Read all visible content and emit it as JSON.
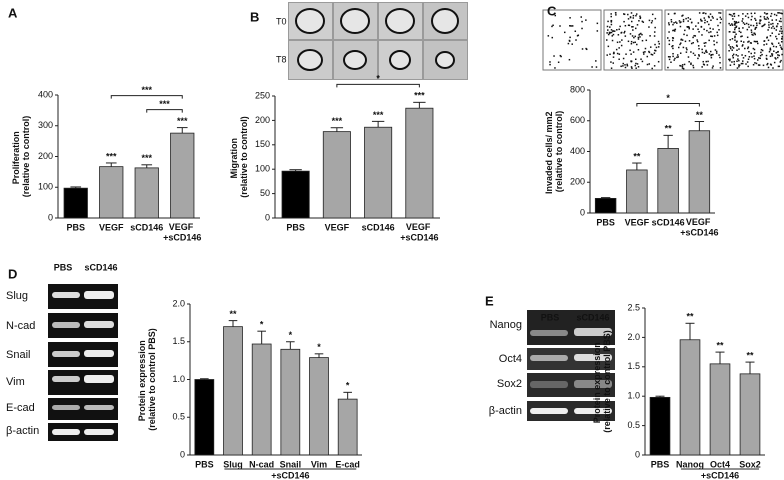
{
  "chart_data": [
    {
      "type": "bar",
      "label": "A",
      "ylabel": "Proliferation\n(relative to control)",
      "categories": [
        "PBS",
        "VEGF",
        "sCD146",
        "VEGF\n+sCD146"
      ],
      "values": [
        97,
        167,
        163,
        276
      ],
      "errors": [
        4,
        12,
        10,
        18
      ],
      "annotations": [
        null,
        "***",
        "***",
        "***"
      ],
      "bar_colors": [
        "#000000",
        "#a6a6a6",
        "#a6a6a6",
        "#a6a6a6"
      ],
      "brackets": [
        {
          "start": "VEGF",
          "end": "VEGF\n+sCD146",
          "label": "***"
        },
        {
          "start": "sCD146",
          "end": "VEGF\n+sCD146",
          "label": "***"
        }
      ],
      "ylim": [
        0,
        400
      ],
      "yticks": [
        0,
        100,
        200,
        300,
        400
      ]
    },
    {
      "type": "bar",
      "label": "B",
      "ylabel": "Migration\n(relative to control)",
      "image_labels": [
        "T0",
        "T8"
      ],
      "categories": [
        "PBS",
        "VEGF",
        "sCD146",
        "VEGF\n+sCD146"
      ],
      "values": [
        96,
        177,
        186,
        225
      ],
      "errors": [
        3,
        8,
        12,
        12
      ],
      "annotations": [
        null,
        "***",
        "***",
        "***"
      ],
      "bar_colors": [
        "#000000",
        "#a6a6a6",
        "#a6a6a6",
        "#a6a6a6"
      ],
      "brackets": [
        {
          "start": "VEGF",
          "end": "VEGF\n+sCD146",
          "label": "*"
        }
      ],
      "ylim": [
        0,
        250
      ],
      "yticks": [
        0,
        50,
        100,
        150,
        200,
        250
      ]
    },
    {
      "type": "bar",
      "label": "C",
      "ylabel": "Invaded cells/ mm2\n(relative to control)",
      "categories": [
        "PBS",
        "VEGF",
        "sCD146",
        "VEGF\n+sCD146"
      ],
      "values": [
        95,
        280,
        420,
        535
      ],
      "errors": [
        5,
        45,
        85,
        60
      ],
      "annotations": [
        null,
        "**",
        "**",
        "**"
      ],
      "bar_colors": [
        "#000000",
        "#a6a6a6",
        "#a6a6a6",
        "#a6a6a6"
      ],
      "brackets": [
        {
          "start": "VEGF",
          "end": "VEGF\n+sCD146",
          "label": "*"
        }
      ],
      "ylim": [
        0,
        800
      ],
      "yticks": [
        0,
        200,
        400,
        600,
        800
      ]
    },
    {
      "type": "bar",
      "label": "D",
      "ylabel": "Protein expression\n(relative to control PBS)",
      "xlabel": "+sCD146",
      "blot": {
        "lanes": [
          "PBS",
          "sCD146"
        ],
        "bands": [
          "Slug",
          "N-cad",
          "Snail",
          "Vim",
          "E-cad",
          "β-actin"
        ]
      },
      "categories": [
        "PBS",
        "Slug",
        "N-cad",
        "Snail",
        "Vim",
        "E-cad"
      ],
      "values": [
        1.0,
        1.7,
        1.47,
        1.4,
        1.29,
        0.74
      ],
      "errors": [
        0.01,
        0.08,
        0.17,
        0.1,
        0.05,
        0.09
      ],
      "annotations": [
        null,
        "**",
        "*",
        "*",
        "*",
        "*"
      ],
      "bar_colors": [
        "#000000",
        "#a6a6a6",
        "#a6a6a6",
        "#a6a6a6",
        "#a6a6a6",
        "#a6a6a6"
      ],
      "ylim": [
        0,
        2.0
      ],
      "yticks": [
        0,
        0.5,
        {
          "value": 1.0,
          "label": "1.0"
        },
        1.5,
        {
          "value": 2.0,
          "label": "2.0"
        }
      ]
    },
    {
      "type": "bar",
      "label": "E",
      "ylabel": "Protein expression\n(relative to control PBS)",
      "xlabel": "+sCD146",
      "blot": {
        "lanes": [
          "PBS",
          "sCD146"
        ],
        "bands": [
          "Nanog",
          "Oct4",
          "Sox2",
          "β-actin"
        ]
      },
      "categories": [
        "PBS",
        "Nanog",
        "Oct4",
        "Sox2"
      ],
      "values": [
        0.98,
        1.96,
        1.55,
        1.38
      ],
      "errors": [
        0.02,
        0.28,
        0.2,
        0.2
      ],
      "annotations": [
        null,
        "**",
        "**",
        "**"
      ],
      "bar_colors": [
        "#000000",
        "#a6a6a6",
        "#a6a6a6",
        "#a6a6a6"
      ],
      "ylim": [
        0,
        2.5
      ],
      "yticks": [
        0,
        0.5,
        {
          "value": 1.0,
          "label": "1.0"
        },
        1.5,
        {
          "value": 2.0,
          "label": "2.0"
        },
        2.5
      ]
    }
  ]
}
